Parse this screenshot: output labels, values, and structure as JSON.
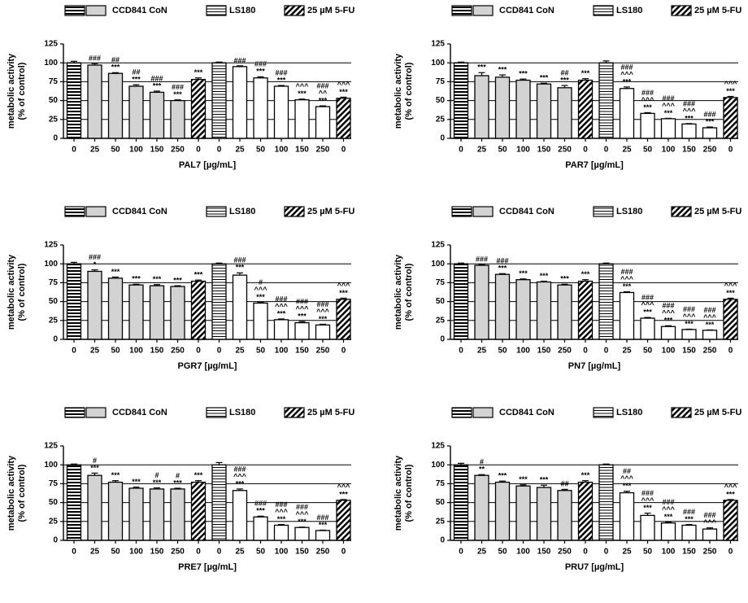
{
  "chart_data": [
    {
      "type": "bar",
      "xlabel": "PAL7 [µg/mL]",
      "ylabel": [
        "metabolic activity",
        "(% of control)"
      ],
      "legend": [
        {
          "name": "CCD841 CoN",
          "styles": [
            "hstripe-bold",
            "gray"
          ]
        },
        {
          "name": "LS180",
          "styles": [
            "hstripe"
          ]
        },
        {
          "name": "25 µM 5-FU",
          "styles": [
            "diag"
          ]
        }
      ],
      "categories": [
        "0",
        "25",
        "50",
        "100",
        "150",
        "250",
        "0",
        "0",
        "25",
        "50",
        "100",
        "150",
        "250",
        "0"
      ],
      "bar_styles": [
        "hstripe-bold",
        "gray",
        "gray",
        "gray",
        "gray",
        "gray",
        "diag",
        "hstripe",
        "white",
        "white",
        "white",
        "white",
        "white",
        "diag"
      ],
      "values": [
        100,
        97,
        86,
        69,
        61,
        50,
        78,
        100,
        95,
        80,
        69,
        51,
        42,
        53
      ],
      "errors": [
        2,
        2,
        1,
        2,
        1.5,
        1,
        2,
        1,
        1,
        1.5,
        1,
        1,
        1,
        1.5
      ],
      "annotations": [
        [],
        [
          "###"
        ],
        [
          "##",
          "***"
        ],
        [
          "##",
          "***"
        ],
        [
          "###",
          "***"
        ],
        [
          "###",
          "***"
        ],
        [
          "***"
        ],
        [],
        [
          "###"
        ],
        [
          "###",
          "***"
        ],
        [
          "###",
          "***"
        ],
        [
          "^^^",
          "***"
        ],
        [
          "###",
          "^^",
          "***"
        ],
        [
          "^^^",
          "***"
        ]
      ],
      "ylim": [
        0,
        125
      ],
      "yticks": [
        0,
        25,
        50,
        75,
        100,
        125
      ],
      "grid": true
    },
    {
      "type": "bar",
      "xlabel": "PAR7 [µg/mL]",
      "ylabel": [
        "metabolic activity",
        "(% of control)"
      ],
      "legend": [
        {
          "name": "CCD841 CoN",
          "styles": [
            "hstripe-bold",
            "gray"
          ]
        },
        {
          "name": "LS180",
          "styles": [
            "hstripe"
          ]
        },
        {
          "name": "25 µM 5-FU",
          "styles": [
            "diag"
          ]
        }
      ],
      "categories": [
        "0",
        "25",
        "50",
        "100",
        "150",
        "250",
        "0",
        "0",
        "25",
        "50",
        "100",
        "150",
        "250",
        "0"
      ],
      "bar_styles": [
        "hstripe-bold",
        "gray",
        "gray",
        "gray",
        "gray",
        "gray",
        "diag",
        "hstripe",
        "white",
        "white",
        "white",
        "white",
        "white",
        "diag"
      ],
      "values": [
        100,
        83,
        81,
        77,
        72,
        67,
        77,
        100,
        66,
        33,
        26,
        19,
        14,
        54
      ],
      "errors": [
        1,
        4,
        3,
        1.5,
        1,
        3,
        2,
        2.5,
        2,
        1,
        0.5,
        0.5,
        1,
        1.5
      ],
      "annotations": [
        [],
        [
          "***"
        ],
        [
          "***"
        ],
        [
          "***"
        ],
        [
          "***"
        ],
        [
          "##",
          "***"
        ],
        [
          "***"
        ],
        [],
        [
          "###",
          "^^^",
          "***"
        ],
        [
          "###",
          "^^^",
          "***"
        ],
        [
          "###",
          "^^^",
          "***"
        ],
        [
          "###",
          "^^^",
          "***"
        ],
        [
          "###",
          "***"
        ],
        [
          "^^^",
          "***"
        ]
      ],
      "ylim": [
        0,
        125
      ],
      "yticks": [
        0,
        25,
        50,
        75,
        100,
        125
      ],
      "grid": true
    },
    {
      "type": "bar",
      "xlabel": "PGR7 [µg/mL]",
      "ylabel": [
        "metabolic activity",
        "(% of control)"
      ],
      "legend": [
        {
          "name": "CCD841 CoN",
          "styles": [
            "hstripe-bold",
            "gray"
          ]
        },
        {
          "name": "LS180",
          "styles": [
            "hstripe"
          ]
        },
        {
          "name": "25 µM 5-FU",
          "styles": [
            "diag"
          ]
        }
      ],
      "categories": [
        "0",
        "25",
        "50",
        "100",
        "150",
        "250",
        "0",
        "0",
        "25",
        "50",
        "100",
        "150",
        "250",
        "0"
      ],
      "bar_styles": [
        "hstripe-bold",
        "gray",
        "gray",
        "gray",
        "gray",
        "gray",
        "diag",
        "hstripe",
        "white",
        "white",
        "white",
        "white",
        "white",
        "diag"
      ],
      "values": [
        100,
        90,
        81,
        72,
        71,
        70,
        77,
        100,
        85,
        48,
        26,
        22,
        19,
        53
      ],
      "errors": [
        2,
        2,
        1.5,
        1,
        1.5,
        1,
        1.5,
        1,
        3,
        1,
        1,
        1.5,
        1,
        1.5
      ],
      "annotations": [
        [],
        [
          "###",
          "*"
        ],
        [
          "***"
        ],
        [
          "***"
        ],
        [
          "***"
        ],
        [
          "***"
        ],
        [
          "***"
        ],
        [],
        [
          "###",
          "***"
        ],
        [
          "#",
          "^^^",
          "***"
        ],
        [
          "###",
          "^^^",
          "***"
        ],
        [
          "###",
          "^^^",
          "***"
        ],
        [
          "###",
          "^^^",
          "***"
        ],
        [
          "^^^",
          "***"
        ]
      ],
      "ylim": [
        0,
        125
      ],
      "yticks": [
        0,
        25,
        50,
        75,
        100,
        125
      ],
      "grid": true
    },
    {
      "type": "bar",
      "xlabel": "PN7 [µg/mL]",
      "ylabel": [
        "metabolic activity",
        "(% of control)"
      ],
      "legend": [
        {
          "name": "CCD841 CoN",
          "styles": [
            "hstripe-bold",
            "gray"
          ]
        },
        {
          "name": "LS180",
          "styles": [
            "hstripe"
          ]
        },
        {
          "name": "25 µM 5-FU",
          "styles": [
            "diag"
          ]
        }
      ],
      "categories": [
        "0",
        "25",
        "50",
        "100",
        "150",
        "250",
        "0",
        "0",
        "25",
        "50",
        "100",
        "150",
        "250",
        "0"
      ],
      "bar_styles": [
        "hstripe-bold",
        "gray",
        "gray",
        "gray",
        "gray",
        "gray",
        "diag",
        "hstripe",
        "white",
        "white",
        "white",
        "white",
        "white",
        "diag"
      ],
      "values": [
        100,
        98,
        86,
        79,
        76,
        72,
        77,
        100,
        62,
        28,
        17,
        13,
        12,
        53
      ],
      "errors": [
        1,
        1,
        1,
        1,
        1,
        1,
        2,
        1,
        1,
        1,
        1,
        0.5,
        0.5,
        1.5
      ],
      "annotations": [
        [],
        [
          "###"
        ],
        [
          "###",
          "***"
        ],
        [
          "***"
        ],
        [
          "***"
        ],
        [
          "***"
        ],
        [
          "***"
        ],
        [],
        [
          "###",
          "^^^",
          "***"
        ],
        [
          "###",
          "^^^",
          "***"
        ],
        [
          "###",
          "^^^",
          "***"
        ],
        [
          "###",
          "^^^",
          "***"
        ],
        [
          "###",
          "^^^",
          "***"
        ],
        [
          "^^^",
          "***"
        ]
      ],
      "ylim": [
        0,
        125
      ],
      "yticks": [
        0,
        25,
        50,
        75,
        100,
        125
      ],
      "grid": true
    },
    {
      "type": "bar",
      "xlabel": "PRE7 [µg/mL]",
      "ylabel": [
        "metabolic activity",
        "(% of control)"
      ],
      "legend": [
        {
          "name": "CCD841 CoN",
          "styles": [
            "hstripe-bold",
            "gray"
          ]
        },
        {
          "name": "LS180",
          "styles": [
            "hstripe"
          ]
        },
        {
          "name": "25 µM 5-FU",
          "styles": [
            "diag"
          ]
        }
      ],
      "categories": [
        "0",
        "25",
        "50",
        "100",
        "150",
        "250",
        "0",
        "0",
        "25",
        "50",
        "100",
        "150",
        "250",
        "0"
      ],
      "bar_styles": [
        "hstripe-bold",
        "gray",
        "gray",
        "gray",
        "gray",
        "gray",
        "diag",
        "hstripe",
        "white",
        "white",
        "white",
        "white",
        "white",
        "diag"
      ],
      "values": [
        100,
        86,
        77,
        69,
        68,
        68,
        77,
        100,
        66,
        31,
        20,
        17,
        13,
        53
      ],
      "errors": [
        1,
        3,
        2,
        1.5,
        1.5,
        1,
        2,
        3,
        2,
        1,
        1,
        0.5,
        0.5,
        1
      ],
      "annotations": [
        [],
        [
          "#",
          "***"
        ],
        [
          "***"
        ],
        [
          "***"
        ],
        [
          "#",
          "***"
        ],
        [
          "#",
          "***"
        ],
        [
          "***"
        ],
        [],
        [
          "###",
          "^^^",
          "***"
        ],
        [
          "###",
          "***"
        ],
        [
          "###",
          "^^^",
          "***"
        ],
        [
          "###",
          "^^^",
          "***"
        ],
        [
          "###",
          "***"
        ],
        [
          "^^^",
          "***"
        ]
      ],
      "ylim": [
        0,
        125
      ],
      "yticks": [
        0,
        25,
        50,
        75,
        100,
        125
      ],
      "grid": true
    },
    {
      "type": "bar",
      "xlabel": "PRU7 [µg/mL]",
      "ylabel": [
        "metabolic activity",
        "(% of control)"
      ],
      "legend": [
        {
          "name": "CCD841 CoN",
          "styles": [
            "hstripe-bold",
            "gray"
          ]
        },
        {
          "name": "LS180",
          "styles": [
            "hstripe"
          ]
        },
        {
          "name": "25 µM 5-FU",
          "styles": [
            "diag"
          ]
        }
      ],
      "categories": [
        "0",
        "25",
        "50",
        "100",
        "150",
        "250",
        "0",
        "0",
        "25",
        "50",
        "100",
        "150",
        "250",
        "0"
      ],
      "bar_styles": [
        "hstripe-bold",
        "gray",
        "gray",
        "gray",
        "gray",
        "gray",
        "diag",
        "hstripe",
        "white",
        "white",
        "white",
        "white",
        "white",
        "diag"
      ],
      "values": [
        100,
        86,
        77,
        72,
        70,
        66,
        77,
        100,
        63,
        33,
        23,
        20,
        15,
        53
      ],
      "errors": [
        2,
        1,
        1.5,
        1.5,
        3,
        1.5,
        2,
        1,
        2,
        3,
        1,
        1,
        1.5,
        1
      ],
      "annotations": [
        [],
        [
          "#",
          "**"
        ],
        [
          "***"
        ],
        [
          "***"
        ],
        [
          "***"
        ],
        [
          "##"
        ],
        [
          "***"
        ],
        [],
        [
          "##",
          "^^^",
          "***"
        ],
        [
          "###",
          "^^^",
          "***"
        ],
        [
          "###",
          "^^^",
          "***"
        ],
        [
          "###",
          "***"
        ],
        [
          "###",
          "^^^"
        ],
        [
          "^^^",
          "***"
        ]
      ],
      "ylim": [
        0,
        125
      ],
      "yticks": [
        0,
        25,
        50,
        75,
        100,
        125
      ],
      "grid": true
    }
  ]
}
